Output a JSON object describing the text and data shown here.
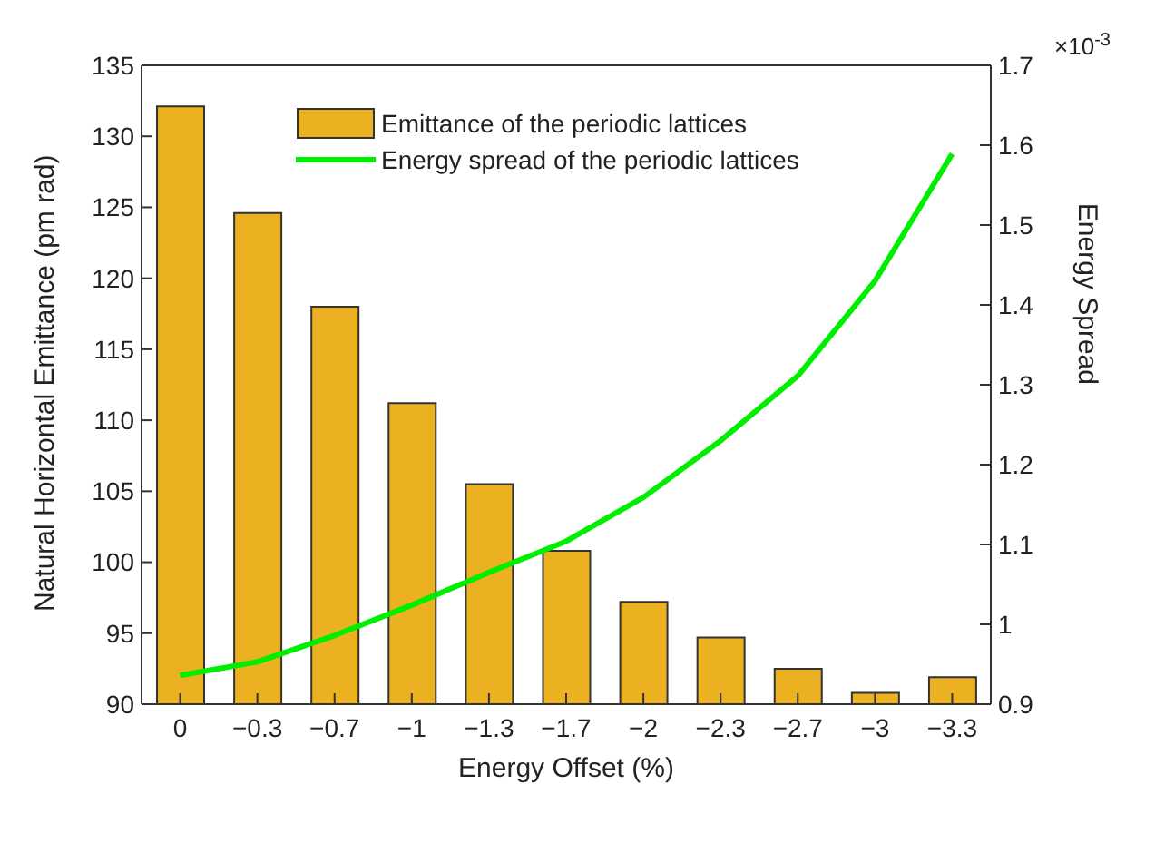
{
  "chart_data": {
    "type": "bar",
    "xlabel": "Energy Offset (%)",
    "ylabel": "Natural Horizontal Emittance (pm rad)",
    "y2label": "Energy Spread",
    "categories": [
      "0",
      "−0.3",
      "−0.7",
      "−1",
      "−1.3",
      "−1.7",
      "−2",
      "−2.3",
      "−2.7",
      "−3",
      "−3.3"
    ],
    "series": [
      {
        "name": "Emittance of the periodic lattices",
        "color": "#ebb120",
        "values": [
          132.1,
          124.6,
          118.0,
          111.2,
          105.5,
          100.8,
          97.2,
          94.7,
          92.5,
          90.8,
          91.9
        ]
      },
      {
        "name": "Energy spread of the periodic lattices",
        "type": "line",
        "axis": "y2",
        "color": "#00ee00",
        "values": [
          0.936,
          0.953,
          0.986,
          1.024,
          1.065,
          1.104,
          1.159,
          1.23,
          1.311,
          1.43,
          1.589
        ]
      }
    ],
    "ylim": [
      90,
      135
    ],
    "yticks": [
      90,
      95,
      100,
      105,
      110,
      115,
      120,
      125,
      130,
      135
    ],
    "y2lim": [
      0.9,
      1.7
    ],
    "y2ticks": [
      {
        "value": 0.9,
        "label": "0.9"
      },
      {
        "value": 1.0,
        "label": "1"
      },
      {
        "value": 1.1,
        "label": "1.1"
      },
      {
        "value": 1.2,
        "label": "1.2"
      },
      {
        "value": 1.3,
        "label": "1.3"
      },
      {
        "value": 1.4,
        "label": "1.4"
      },
      {
        "value": 1.5,
        "label": "1.5"
      },
      {
        "value": 1.6,
        "label": "1.6"
      },
      {
        "value": 1.7,
        "label": "1.7"
      }
    ],
    "annotations": [
      "×10$^{-3}$"
    ],
    "legend": "top",
    "grid": false,
    "marker": "none",
    "line_style": "solid"
  }
}
